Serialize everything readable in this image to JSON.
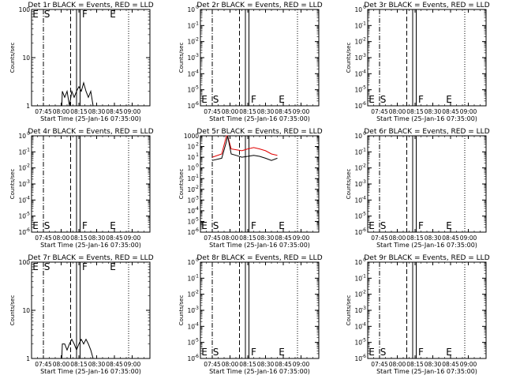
{
  "panel_titles": [
    "Det 1r BLACK = Events, RED = LLD",
    "Det 2r BLACK = Events, RED = LLD",
    "Det 3r BLACK = Events, RED = LLD",
    "Det 4r BLACK = Events, RED = LLD",
    "Det 5r BLACK = Events, RED = LLD",
    "Det 6r BLACK = Events, RED = LLD",
    "Det 7r BLACK = Events, RED = LLD",
    "Det 8r BLACK = Events, RED = LLD",
    "Det 9r BLACK = Events, RED = LLD"
  ],
  "xlabel": "Start Time (25-Jan-16 07:35:00)",
  "ylabel": "Counts/sec",
  "x_ticks": [
    "07:45",
    "08:00",
    "08:15",
    "08:30",
    "08:45",
    "09:00"
  ],
  "marker_letters": [
    "E",
    "S",
    "F",
    "E"
  ],
  "tick_labels": {
    "pow": [
      "10",
      "10",
      "10",
      "10",
      "10",
      "10",
      "10"
    ],
    "exp": [
      "0",
      "-1",
      "-2",
      "-3",
      "-4",
      "-5",
      "-6"
    ],
    "exp_sup": [
      "-1",
      "-2",
      "-3",
      "-4",
      "-5",
      "-6"
    ],
    "lin_2": [
      "100",
      "10",
      "1"
    ],
    "lin_5": "1000",
    "lin_5_rest": [
      "10",
      "10",
      "10",
      "10",
      "10",
      "10"
    ]
  },
  "colors": {
    "events": "#000000",
    "lld": "#e00000"
  },
  "chart_data": [
    {
      "type": "line",
      "title": "Det 1r BLACK = Events, RED = LLD",
      "x_range": [
        "07:35",
        "09:15"
      ],
      "y_scale": "log",
      "ylim": [
        1,
        100
      ],
      "events": [
        [
          0,
          0
        ],
        [
          15.5,
          1
        ],
        [
          16,
          2
        ],
        [
          18,
          1.5
        ],
        [
          20,
          2
        ],
        [
          22,
          1
        ],
        [
          24,
          2
        ],
        [
          26,
          1.5
        ],
        [
          28,
          2
        ],
        [
          30,
          2.5
        ],
        [
          32,
          2
        ],
        [
          34,
          3
        ],
        [
          36,
          2
        ],
        [
          38,
          1.5
        ],
        [
          40,
          2
        ],
        [
          42,
          1
        ]
      ],
      "markers": {
        "E_dashdot": "07:45",
        "S_dashed": "08:08",
        "F_solid": [
          "08:13",
          "08:16"
        ],
        "E_dotted": "08:57"
      }
    },
    {
      "type": "line",
      "title": "Det 2r BLACK = Events, RED = LLD",
      "x_range": [
        "07:35",
        "09:15"
      ],
      "y_scale": "log",
      "ylim": [
        1e-06,
        1
      ],
      "events": []
    },
    {
      "type": "line",
      "title": "Det 3r BLACK = Events, RED = LLD",
      "x_range": [
        "07:35",
        "09:15"
      ],
      "y_scale": "log",
      "ylim": [
        1e-06,
        1
      ],
      "events": []
    },
    {
      "type": "line",
      "title": "Det 4r BLACK = Events, RED = LLD",
      "x_range": [
        "07:35",
        "09:15"
      ],
      "y_scale": "log",
      "ylim": [
        1e-06,
        1
      ],
      "events": []
    },
    {
      "type": "line",
      "title": "Det 5r BLACK = Events, RED = LLD",
      "x_range": [
        "07:35",
        "09:15"
      ],
      "y_scale": "log",
      "ylim": [
        1e-06,
        1000
      ],
      "events": [
        [
          0,
          5
        ],
        [
          8,
          8
        ],
        [
          12,
          300
        ],
        [
          13,
          1000
        ],
        [
          16,
          20
        ],
        [
          20,
          15
        ],
        [
          25,
          10
        ],
        [
          30,
          12
        ],
        [
          35,
          15
        ],
        [
          40,
          12
        ],
        [
          45,
          8
        ],
        [
          50,
          5
        ],
        [
          55,
          8
        ]
      ],
      "lld": [
        [
          0,
          10
        ],
        [
          8,
          20
        ],
        [
          12,
          1000
        ],
        [
          13,
          1000
        ],
        [
          16,
          60
        ],
        [
          20,
          50
        ],
        [
          25,
          40
        ],
        [
          30,
          60
        ],
        [
          35,
          80
        ],
        [
          40,
          60
        ],
        [
          45,
          40
        ],
        [
          50,
          20
        ],
        [
          55,
          15
        ]
      ]
    },
    {
      "type": "line",
      "title": "Det 6r BLACK = Events, RED = LLD",
      "x_range": [
        "07:35",
        "09:15"
      ],
      "y_scale": "log",
      "ylim": [
        1e-06,
        1
      ],
      "events": []
    },
    {
      "type": "line",
      "title": "Det 7r BLACK = Events, RED = LLD",
      "x_range": [
        "07:35",
        "09:15"
      ],
      "y_scale": "log",
      "ylim": [
        1,
        100
      ],
      "events": [
        [
          15.5,
          1
        ],
        [
          16,
          2
        ],
        [
          18,
          2
        ],
        [
          20,
          1.5
        ],
        [
          22,
          2
        ],
        [
          24,
          2.5
        ],
        [
          26,
          2
        ],
        [
          28,
          1.5
        ],
        [
          30,
          2
        ],
        [
          32,
          2.5
        ],
        [
          34,
          2
        ],
        [
          36,
          2.5
        ],
        [
          38,
          2
        ],
        [
          40,
          1.5
        ],
        [
          42,
          1
        ]
      ]
    },
    {
      "type": "line",
      "title": "Det 8r BLACK = Events, RED = LLD",
      "x_range": [
        "07:35",
        "09:15"
      ],
      "y_scale": "log",
      "ylim": [
        1e-06,
        1
      ],
      "events": []
    },
    {
      "type": "line",
      "title": "Det 9r BLACK = Events, RED = LLD",
      "x_range": [
        "07:35",
        "09:15"
      ],
      "y_scale": "log",
      "ylim": [
        1e-06,
        1
      ],
      "events": []
    }
  ]
}
